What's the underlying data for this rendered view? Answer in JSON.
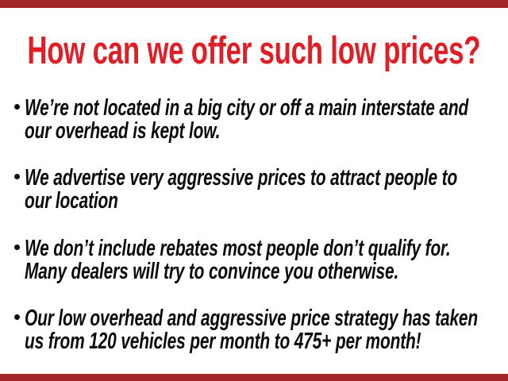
{
  "slide": {
    "title": "How can we offer such low prices?",
    "bullets": [
      {
        "lines": [
          "We’re not located in a big city or off a main interstate and",
          "our overhead is kept low."
        ]
      },
      {
        "lines": [
          "We advertise very aggressive prices to attract people to",
          "our location"
        ]
      },
      {
        "lines": [
          "We don’t include rebates most people don’t qualify for.",
          "Many dealers will try to convince you otherwise."
        ]
      },
      {
        "lines": [
          "Our low overhead and aggressive price strategy has taken",
          "us from 120 vehicles per month to 475+ per month!"
        ]
      }
    ],
    "colors": {
      "title_red": "#e11d26",
      "border_red": "#a32626",
      "text_black": "#0b0b0b",
      "background": "#ffffff"
    }
  }
}
